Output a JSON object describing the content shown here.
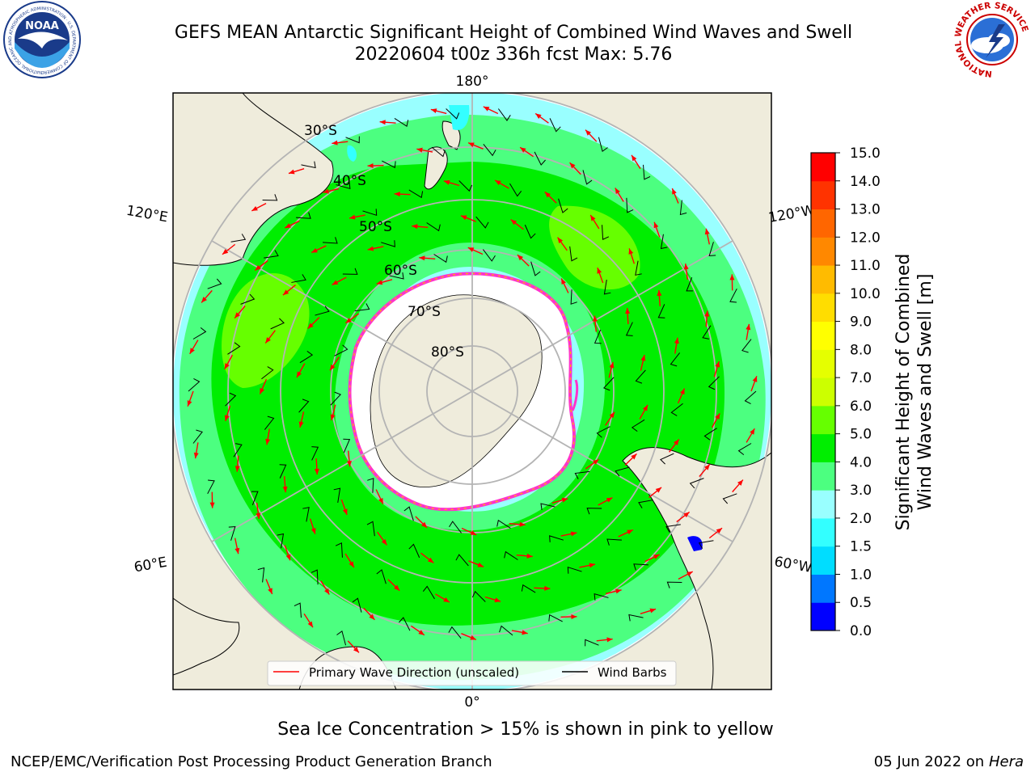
{
  "header": {
    "title_line1": "GEFS MEAN Antarctic Significant Height of Combined Wind Waves and Swell",
    "title_line2": "20220604 t00z 336h fcst   Max: 5.76"
  },
  "logos": {
    "noaa_icon": "noaa-logo",
    "noaa_text": "NOAA",
    "noaa_ring_text": "NATIONAL OCEANIC AND ATMOSPHERIC ADMINISTRATION · U.S. DEPARTMENT OF COMMERCE",
    "nws_icon": "nws-logo",
    "nws_ring_text": "NATIONAL WEATHER SERVICE"
  },
  "map": {
    "projection": "south-polar-stereographic",
    "longitude_labels": [
      "180°",
      "120°E",
      "120°W",
      "60°E",
      "60°W",
      "0°"
    ],
    "latitude_labels": [
      "30°S",
      "40°S",
      "50°S",
      "60°S",
      "70°S",
      "80°S"
    ],
    "colors": {
      "land": "#efecdc",
      "ice_shelf": "#ffffff",
      "sea_ice_edge": "#ff33cc",
      "wave_arrow": "#ff0000",
      "wind_barb": "#000000",
      "grid": "#b4b4b4"
    },
    "legend": [
      {
        "label": "Primary Wave Direction (unscaled)",
        "color": "#ff0000"
      },
      {
        "label": "Wind Barbs",
        "color": "#000000"
      }
    ]
  },
  "colorbar": {
    "label_line1": "Significant Height of Combined",
    "label_line2": "Wind Waves and Swell [m]",
    "ticks": [
      "0.0",
      "0.5",
      "1.0",
      "1.5",
      "2.0",
      "3.0",
      "4.0",
      "5.0",
      "6.0",
      "7.0",
      "8.0",
      "9.0",
      "10.0",
      "11.0",
      "12.0",
      "13.0",
      "14.0",
      "15.0"
    ],
    "colors": [
      "#0000ff",
      "#0077ff",
      "#00ddff",
      "#33ffff",
      "#99ffff",
      "#4cff80",
      "#00ee00",
      "#66ff00",
      "#ccff00",
      "#e5ff00",
      "#ffff00",
      "#ffdd00",
      "#ffbb00",
      "#ff8800",
      "#ff6600",
      "#ff3300",
      "#ff0000"
    ]
  },
  "footer": {
    "sea_ice_note": "Sea Ice Concentration > 15% is shown in pink to yellow",
    "credit": "NCEP/EMC/Verification Post Processing Product Generation Branch",
    "date": "05 Jun 2022 on",
    "machine": "Hera"
  }
}
